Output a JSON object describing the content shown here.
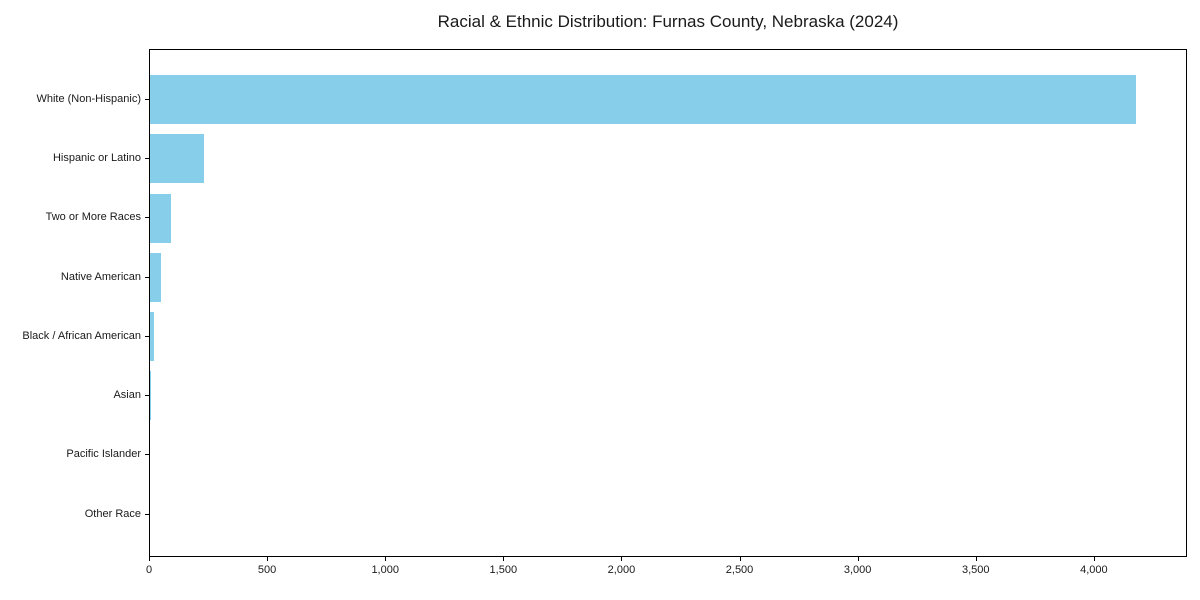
{
  "chart_data": {
    "type": "bar",
    "orientation": "horizontal",
    "title": "Racial & Ethnic Distribution: Furnas County, Nebraska (2024)",
    "categories": [
      "White (Non-Hispanic)",
      "Hispanic or Latino",
      "Two or More Races",
      "Native American",
      "Black / African American",
      "Asian",
      "Pacific Islander",
      "Other Race"
    ],
    "values": [
      4180,
      230,
      90,
      45,
      18,
      5,
      0,
      0
    ],
    "xlabel": "",
    "ylabel": "",
    "xlim": [
      0,
      4390
    ],
    "x_ticks": [
      0,
      500,
      1000,
      1500,
      2000,
      2500,
      3000,
      3500,
      4000
    ],
    "x_tick_labels": [
      "0",
      "500",
      "1,000",
      "1,500",
      "2,000",
      "2,500",
      "3,000",
      "3,500",
      "4,000"
    ],
    "grid": false,
    "legend": null,
    "bar_color": "#87CEEB"
  },
  "colors": {
    "bar": "#87CEEB",
    "text": "#1a1a1a",
    "spine": "#000000",
    "background": "#ffffff"
  }
}
